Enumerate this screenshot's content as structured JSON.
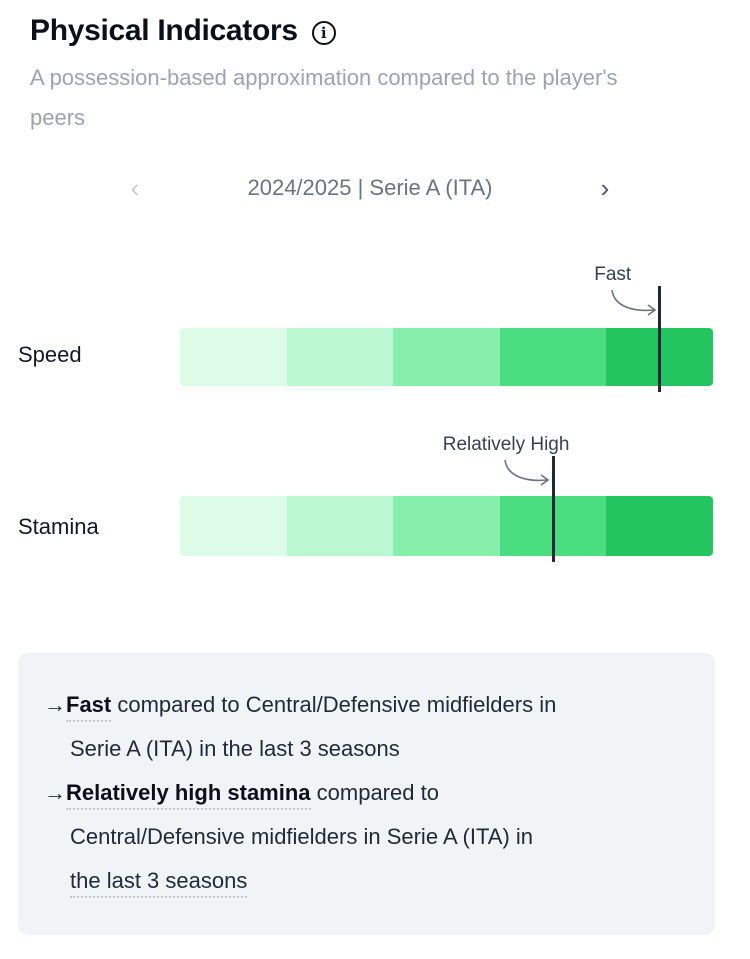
{
  "header": {
    "title": "Physical Indicators",
    "info_icon": "info-icon",
    "subtitle": "A possession-based approximation compared to the player's peers"
  },
  "season_nav": {
    "prev_icon": "chevron-left-icon",
    "label": "2024/2025 | Serie A (ITA)",
    "next_icon": "chevron-right-icon"
  },
  "colors": {
    "segments": [
      "#dcfce7",
      "#bbf7d0",
      "#86efac",
      "#4ade80",
      "#22c55e"
    ],
    "marker": "#1f2937",
    "summary_bg": "#f1f4f7"
  },
  "metrics": [
    {
      "label": "Speed",
      "level_label": "Fast",
      "level_fraction": 0.9
    },
    {
      "label": "Stamina",
      "level_label": "Relatively High",
      "level_fraction": 0.7
    }
  ],
  "summary": {
    "arrow": "→",
    "items": [
      {
        "bold": "Fast",
        "rest_line1": " compared to Central/Defensive midfielders in",
        "line2": "Serie A (ITA) in the last 3 seasons"
      },
      {
        "bold": "Relatively high stamina",
        "rest_line1": " compared to",
        "line2": "Central/Defensive midfielders in Serie A (ITA) in",
        "line3": "the last 3 seasons"
      }
    ]
  }
}
